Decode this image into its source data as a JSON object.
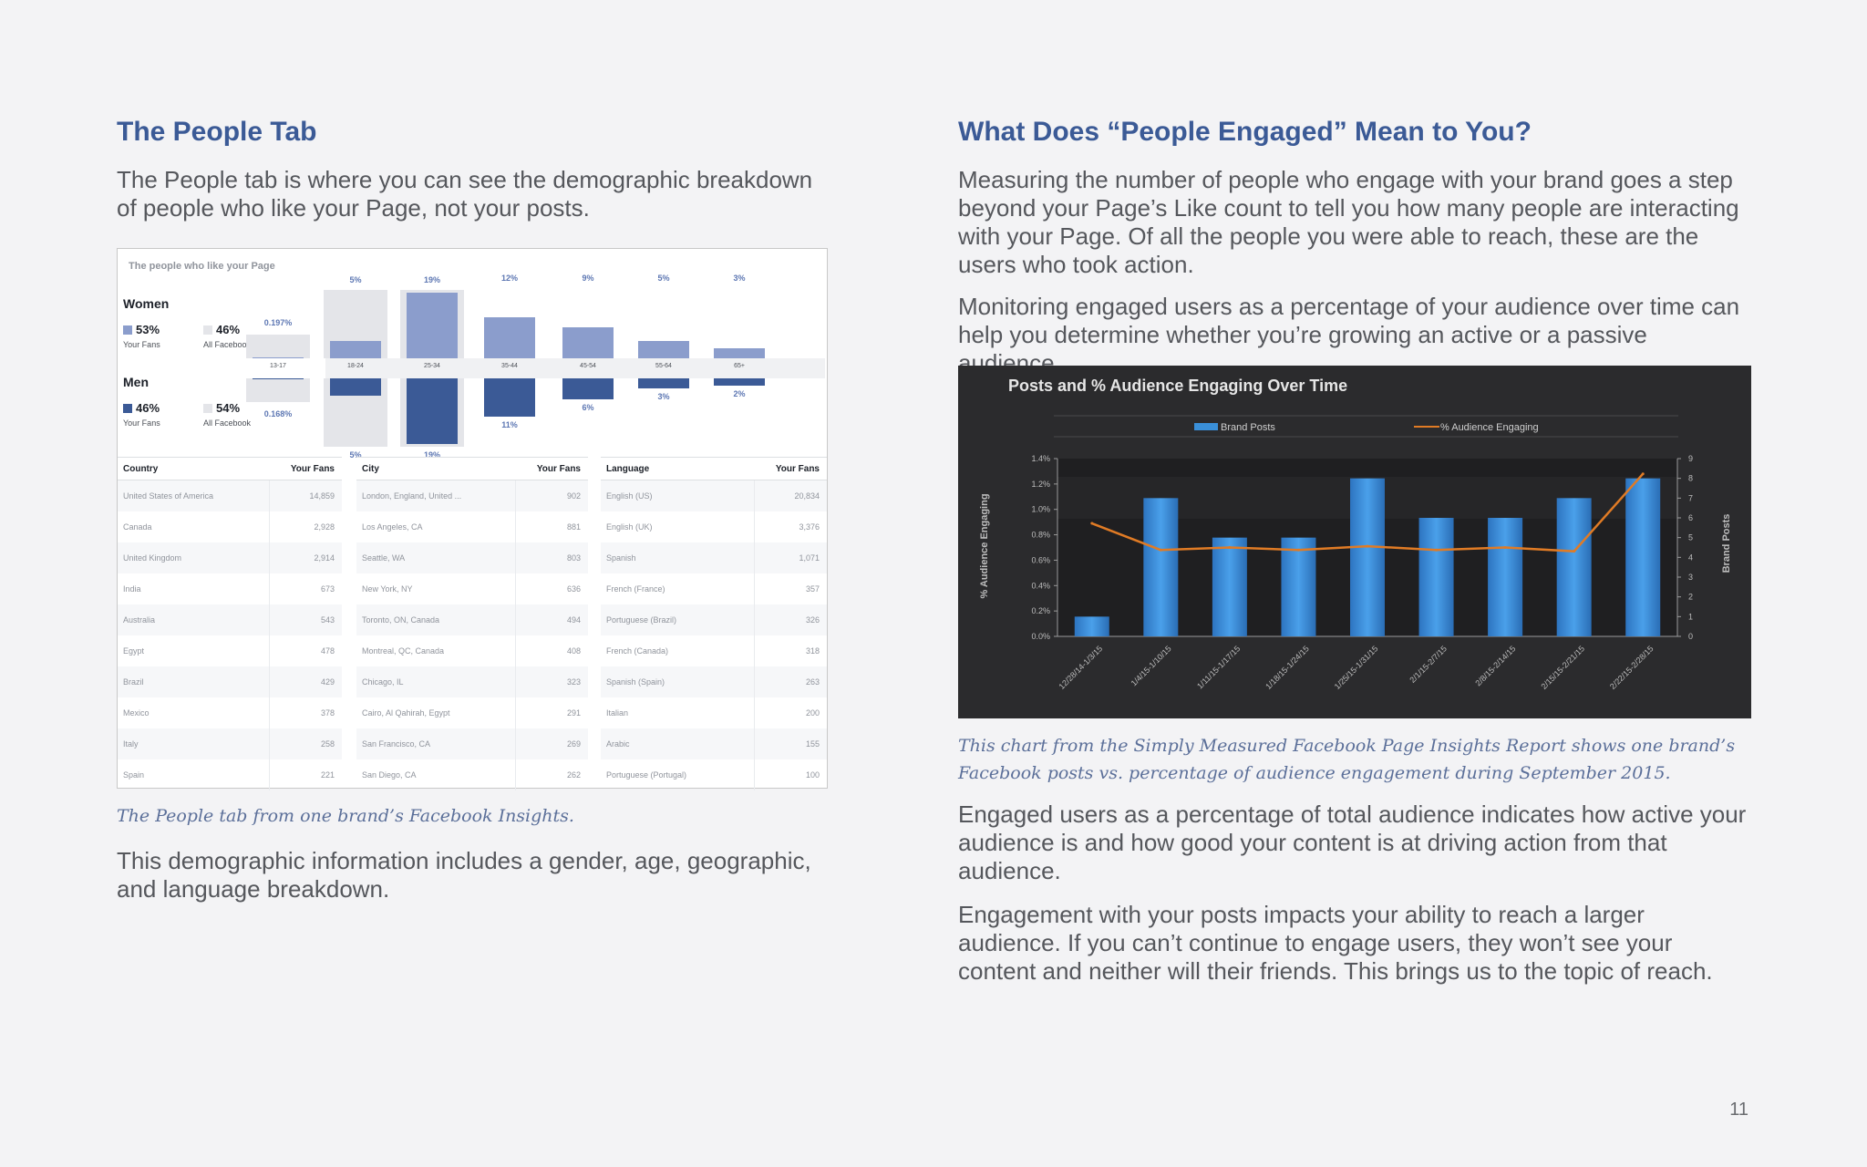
{
  "left": {
    "heading": "The People Tab",
    "intro": "The People tab is where you can see the demographic breakdown of people who like your Page, not your posts.",
    "caption": "The People tab from one brand’s Facebook Insights.",
    "outro": "This demographic information includes a gender, age, geographic, and language breakdown."
  },
  "insights": {
    "title": "The people who like your Page",
    "women": {
      "label": "Women",
      "fans_pct": "53%",
      "fans_label": "Your Fans",
      "fb_pct": "46%",
      "fb_label": "All Facebook"
    },
    "men": {
      "label": "Men",
      "fans_pct": "46%",
      "fans_label": "Your Fans",
      "fb_pct": "54%",
      "fb_label": "All Facebook"
    },
    "ages": [
      {
        "age": "13-17",
        "women": "0.197%",
        "men": "0.168%",
        "w": 0.002,
        "m": 0.002
      },
      {
        "age": "18-24",
        "women": "5%",
        "men": "5%",
        "w": 5,
        "m": 5
      },
      {
        "age": "25-34",
        "women": "19%",
        "men": "19%",
        "w": 19,
        "m": 19
      },
      {
        "age": "35-44",
        "women": "12%",
        "men": "11%",
        "w": 12,
        "m": 11
      },
      {
        "age": "45-54",
        "women": "9%",
        "men": "6%",
        "w": 9,
        "m": 6
      },
      {
        "age": "55-64",
        "women": "5%",
        "men": "3%",
        "w": 5,
        "m": 3
      },
      {
        "age": "65+",
        "women": "3%",
        "men": "2%",
        "w": 3,
        "m": 2
      }
    ],
    "colors": {
      "women": "#8b9dcc",
      "men": "#3b5a96"
    },
    "tables": [
      {
        "head": [
          "Country",
          "Your Fans"
        ],
        "rows": [
          [
            "United States of America",
            "14,859"
          ],
          [
            "Canada",
            "2,928"
          ],
          [
            "United Kingdom",
            "2,914"
          ],
          [
            "India",
            "673"
          ],
          [
            "Australia",
            "543"
          ],
          [
            "Egypt",
            "478"
          ],
          [
            "Brazil",
            "429"
          ],
          [
            "Mexico",
            "378"
          ],
          [
            "Italy",
            "258"
          ],
          [
            "Spain",
            "221"
          ]
        ]
      },
      {
        "head": [
          "City",
          "Your Fans"
        ],
        "rows": [
          [
            "London, England, United ...",
            "902"
          ],
          [
            "Los Angeles, CA",
            "881"
          ],
          [
            "Seattle, WA",
            "803"
          ],
          [
            "New York, NY",
            "636"
          ],
          [
            "Toronto, ON, Canada",
            "494"
          ],
          [
            "Montreal, QC, Canada",
            "408"
          ],
          [
            "Chicago, IL",
            "323"
          ],
          [
            "Cairo, Al Qahirah, Egypt",
            "291"
          ],
          [
            "San Francisco, CA",
            "269"
          ],
          [
            "San Diego, CA",
            "262"
          ]
        ]
      },
      {
        "head": [
          "Language",
          "Your Fans"
        ],
        "rows": [
          [
            "English (US)",
            "20,834"
          ],
          [
            "English (UK)",
            "3,376"
          ],
          [
            "Spanish",
            "1,071"
          ],
          [
            "French (France)",
            "357"
          ],
          [
            "Portuguese (Brazil)",
            "326"
          ],
          [
            "French (Canada)",
            "318"
          ],
          [
            "Spanish (Spain)",
            "263"
          ],
          [
            "Italian",
            "200"
          ],
          [
            "Arabic",
            "155"
          ],
          [
            "Portuguese (Portugal)",
            "100"
          ]
        ]
      }
    ]
  },
  "right": {
    "heading": "What Does “People Engaged” Mean to You?",
    "p1": "Measuring the number of people who engage with your brand goes a step beyond your Page’s Like count to tell you how many people are interacting with your Page. Of all the people you were able to reach, these are the users who took action.",
    "p2": "Monitoring engaged users as a percentage of your audience over time can help you determine whether you’re growing an active or a passive audience.",
    "caption": "This chart from the Simply Measured Facebook Page Insights Report shows one brand’s Facebook posts vs. percentage of audience engagement during September 2015.",
    "p3": "Engaged users as a percentage of total audience indicates how active your audience is and how good your content is at driving action from that audience.",
    "p4": "Engagement with your posts impacts your ability to reach a larger audience. If you can’t continue to engage users, they won’t see your content and neither will their friends. This brings us to the topic of reach."
  },
  "chart_data": {
    "type": "bar",
    "title": "Posts and % Audience Engaging Over Time",
    "categories": [
      "12/28/14-1/3/15",
      "1/4/15-1/10/15",
      "1/11/15-1/17/15",
      "1/18/15-1/24/15",
      "1/25/15-1/31/15",
      "2/1/15-2/7/15",
      "2/8/15-2/14/15",
      "2/15/15-2/21/15",
      "2/22/15-2/28/15"
    ],
    "series": [
      {
        "name": "Brand Posts",
        "type": "bar",
        "axis": "right",
        "values": [
          1,
          7,
          5,
          5,
          8,
          6,
          6,
          7,
          8
        ],
        "color": "#3a8fd8"
      },
      {
        "name": "% Audience Engaging",
        "type": "line",
        "axis": "left",
        "values": [
          0.89,
          0.68,
          0.7,
          0.68,
          0.71,
          0.68,
          0.7,
          0.67,
          1.28
        ],
        "color": "#e07b25"
      }
    ],
    "ylabel": "% Audience Engaging",
    "y2label": "Brand Posts",
    "ylim": [
      0,
      1.4
    ],
    "y2lim": [
      0,
      9
    ],
    "yticks": [
      "0.0%",
      "0.2%",
      "0.4%",
      "0.6%",
      "0.8%",
      "1.0%",
      "1.2%",
      "1.4%"
    ],
    "y2ticks": [
      "0",
      "1",
      "2",
      "3",
      "4",
      "5",
      "6",
      "7",
      "8",
      "9"
    ],
    "legend": "top-center",
    "grid": false
  },
  "page_number": "11"
}
